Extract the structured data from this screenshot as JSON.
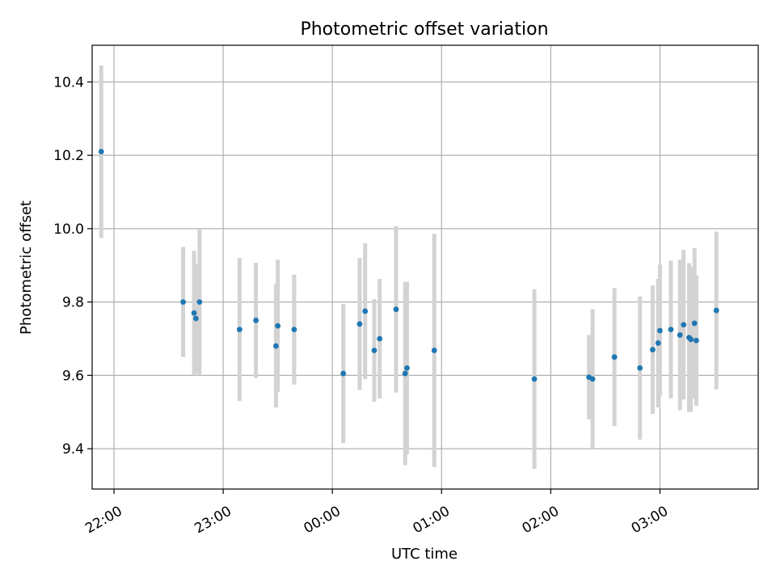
{
  "chart_data": {
    "type": "scatter",
    "title": "Photometric offset variation",
    "xlabel": "UTC time",
    "ylabel": "Photometric offset",
    "x_is_time": true,
    "xlim": [
      "21:48",
      "03:54"
    ],
    "ylim": [
      9.29,
      10.5
    ],
    "grid": true,
    "x_tick_labels": [
      "22:00",
      "23:00",
      "00:00",
      "01:00",
      "02:00",
      "03:00"
    ],
    "y_ticks": [
      9.4,
      9.6,
      9.8,
      10.0,
      10.2,
      10.4
    ],
    "y_tick_labels": [
      "9.4",
      "9.6",
      "9.8",
      "10.0",
      "10.2",
      "10.4"
    ],
    "colors": {
      "point": "#1f77b4",
      "errorbar": "#d3d3d3",
      "grid": "#b0b0b0"
    },
    "series": [
      {
        "points": [
          {
            "x": "21:53",
            "y": 10.21,
            "err": 0.235
          },
          {
            "x": "22:38",
            "y": 9.8,
            "err": 0.15
          },
          {
            "x": "22:44",
            "y": 9.77,
            "err": 0.17
          },
          {
            "x": "22:45",
            "y": 9.755,
            "err": 0.15
          },
          {
            "x": "22:47",
            "y": 9.8,
            "err": 0.2
          },
          {
            "x": "23:09",
            "y": 9.725,
            "err": 0.195
          },
          {
            "x": "23:18",
            "y": 9.75,
            "err": 0.157
          },
          {
            "x": "23:29",
            "y": 9.68,
            "err": 0.168
          },
          {
            "x": "23:30",
            "y": 9.735,
            "err": 0.18
          },
          {
            "x": "23:39",
            "y": 9.725,
            "err": 0.15
          },
          {
            "x": "00:06",
            "y": 9.605,
            "err": 0.19
          },
          {
            "x": "00:15",
            "y": 9.74,
            "err": 0.18
          },
          {
            "x": "00:18",
            "y": 9.775,
            "err": 0.185
          },
          {
            "x": "00:23",
            "y": 9.668,
            "err": 0.14
          },
          {
            "x": "00:26",
            "y": 9.7,
            "err": 0.163
          },
          {
            "x": "00:35",
            "y": 9.78,
            "err": 0.227
          },
          {
            "x": "00:40",
            "y": 9.605,
            "err": 0.25
          },
          {
            "x": "00:41",
            "y": 9.62,
            "err": 0.235
          },
          {
            "x": "00:56",
            "y": 9.668,
            "err": 0.318
          },
          {
            "x": "01:51",
            "y": 9.59,
            "err": 0.245
          },
          {
            "x": "02:21",
            "y": 9.595,
            "err": 0.115
          },
          {
            "x": "02:23",
            "y": 9.59,
            "err": 0.19
          },
          {
            "x": "02:35",
            "y": 9.65,
            "err": 0.188
          },
          {
            "x": "02:49",
            "y": 9.62,
            "err": 0.195
          },
          {
            "x": "02:56",
            "y": 9.67,
            "err": 0.175
          },
          {
            "x": "02:59",
            "y": 9.688,
            "err": 0.175
          },
          {
            "x": "03:00",
            "y": 9.722,
            "err": 0.18
          },
          {
            "x": "03:06",
            "y": 9.725,
            "err": 0.188
          },
          {
            "x": "03:11",
            "y": 9.71,
            "err": 0.205
          },
          {
            "x": "03:13",
            "y": 9.738,
            "err": 0.204
          },
          {
            "x": "03:16",
            "y": 9.703,
            "err": 0.203
          },
          {
            "x": "03:17",
            "y": 9.698,
            "err": 0.197
          },
          {
            "x": "03:19",
            "y": 9.742,
            "err": 0.205
          },
          {
            "x": "03:20",
            "y": 9.695,
            "err": 0.178
          },
          {
            "x": "03:31",
            "y": 9.777,
            "err": 0.215
          }
        ]
      }
    ]
  }
}
